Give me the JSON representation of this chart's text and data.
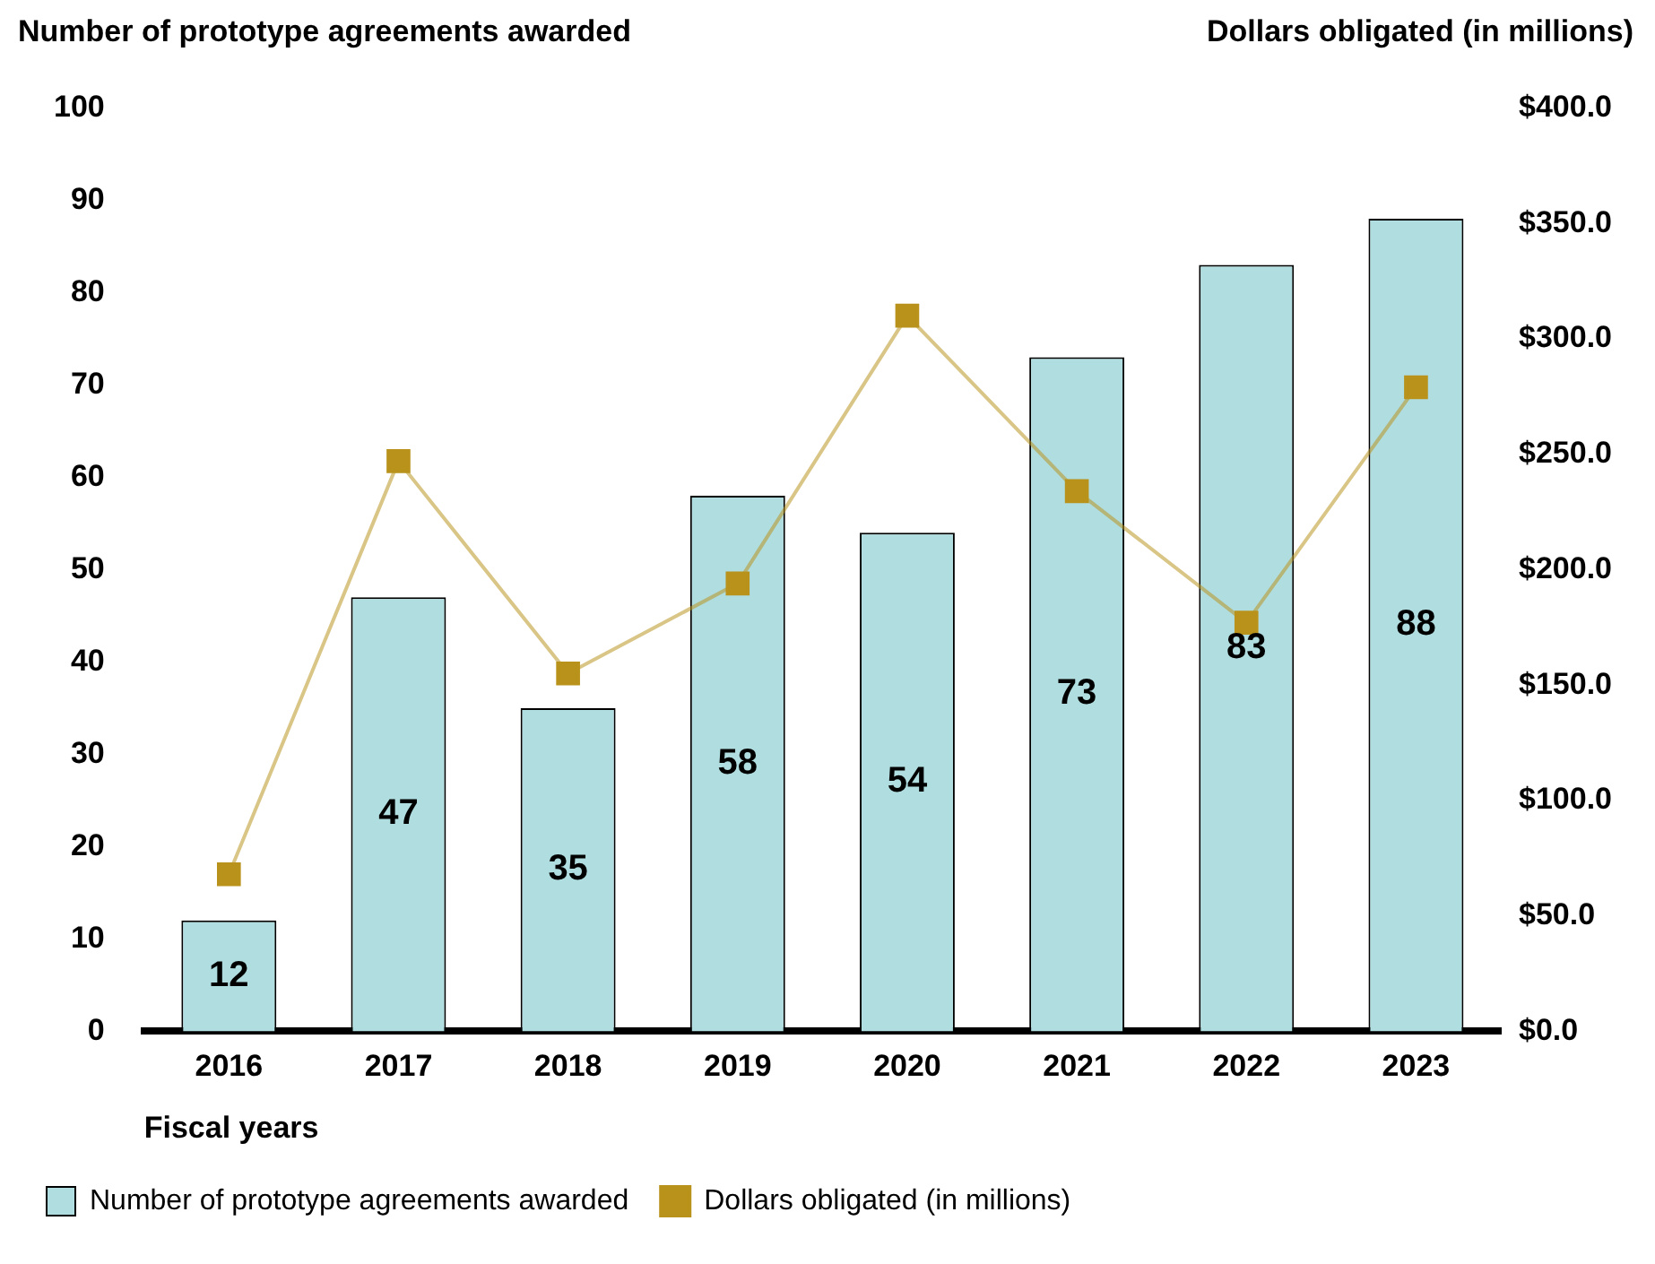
{
  "chart_data": {
    "type": "bar",
    "xlabel": "Fiscal years",
    "ylabel": "Number of prototype agreements awarded",
    "y2label": "Dollars obligated (in millions)",
    "categories": [
      "2016",
      "2017",
      "2018",
      "2019",
      "2020",
      "2021",
      "2022",
      "2023"
    ],
    "series": [
      {
        "name": "Number of prototype agreements awarded",
        "color": "#b0dde0",
        "values": [
          12,
          47,
          35,
          58,
          54,
          73,
          83,
          88
        ],
        "value_labels": [
          "12",
          "47",
          "35",
          "58",
          "54",
          "73",
          "83",
          "88"
        ]
      },
      {
        "name": "Dollars obligated (in millions)",
        "type": "line",
        "axis": "y2",
        "color": "#b8921a",
        "values": [
          68,
          247,
          155,
          194,
          310,
          234,
          177,
          279
        ]
      }
    ],
    "marker": "square",
    "legend": "bottom",
    "grid": false,
    "ylim": [
      0,
      100
    ],
    "yticks": [
      0,
      10,
      20,
      30,
      40,
      50,
      60,
      70,
      80,
      90,
      100
    ],
    "y2lim": [
      0,
      400
    ],
    "y2ticks": [
      {
        "value": 0,
        "label": "$0.0"
      },
      {
        "value": 50,
        "label": "$50.0"
      },
      {
        "value": 100,
        "label": "$100.0"
      },
      {
        "value": 150,
        "label": "$150.0"
      },
      {
        "value": 200,
        "label": "$200.0"
      },
      {
        "value": 250,
        "label": "$250.0"
      },
      {
        "value": 300,
        "label": "$300.0"
      },
      {
        "value": 350,
        "label": "$350.0"
      },
      {
        "value": 400,
        "label": "$400.0"
      }
    ]
  }
}
